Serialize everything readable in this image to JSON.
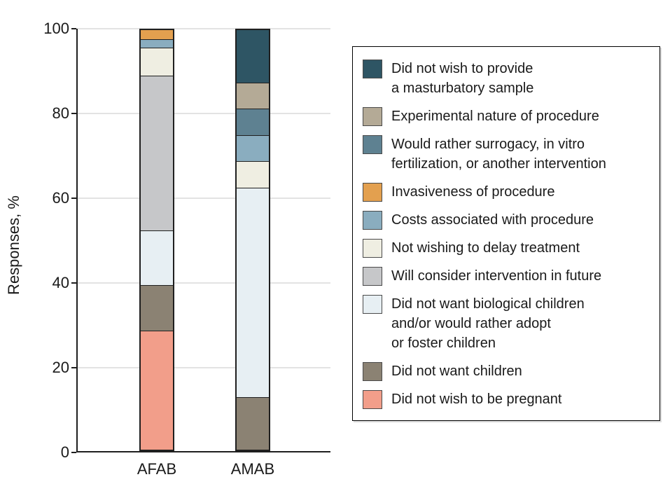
{
  "chart_data": {
    "type": "bar",
    "stacked": true,
    "units": "percent",
    "title": "",
    "xlabel": "",
    "ylabel": "Responses, %",
    "ylim": [
      0,
      100
    ],
    "yticks": [
      0,
      20,
      40,
      60,
      80,
      100
    ],
    "grid": "horizontal",
    "legend_position": "right",
    "categories": [
      "AFAB",
      "AMAB"
    ],
    "series": [
      {
        "name": "Did not wish to provide a masturbatory sample",
        "legend_lines": [
          "Did not wish to provide",
          "a masturbatory sample"
        ],
        "color": "#2e5564",
        "values": [
          0,
          12.5
        ]
      },
      {
        "name": "Experimental nature of procedure",
        "legend_lines": [
          "Experimental nature of procedure"
        ],
        "color": "#b4aa96",
        "values": [
          0,
          6.25
        ]
      },
      {
        "name": "Would rather surrogacy, in vitro fertilization, or another intervention",
        "legend_lines": [
          "Would rather surrogacy, in vitro",
          "fertilization, or another intervention"
        ],
        "color": "#5e8191",
        "values": [
          0,
          6.25
        ]
      },
      {
        "name": "Invasiveness of procedure",
        "legend_lines": [
          "Invasiveness of procedure"
        ],
        "color": "#e3a04f",
        "values": [
          2.1,
          0
        ]
      },
      {
        "name": "Costs associated with procedure",
        "legend_lines": [
          "Costs associated with procedure"
        ],
        "color": "#8aadbf",
        "values": [
          2.1,
          6.25
        ]
      },
      {
        "name": "Not wishing to delay treatment",
        "legend_lines": [
          "Not wishing to delay treatment"
        ],
        "color": "#efeee2",
        "values": [
          6.6,
          6.25
        ]
      },
      {
        "name": "Will consider intervention in future",
        "legend_lines": [
          "Will consider intervention in future"
        ],
        "color": "#c6c7c9",
        "values": [
          37.0,
          0
        ]
      },
      {
        "name": "Did not want biological children and/or would rather adopt or foster children",
        "legend_lines": [
          "Did not want biological children",
          "and/or would rather adopt",
          "or foster children"
        ],
        "color": "#e7eff3",
        "values": [
          13.0,
          50.0
        ]
      },
      {
        "name": "Did not want children",
        "legend_lines": [
          "Did not want children"
        ],
        "color": "#8b8273",
        "values": [
          10.9,
          12.5
        ]
      },
      {
        "name": "Did not wish to be pregnant",
        "legend_lines": [
          "Did not wish to be pregnant"
        ],
        "color": "#f29e8a",
        "values": [
          28.3,
          0
        ]
      }
    ]
  },
  "style_colors": {
    "axis": "#1f1f1f",
    "gridline": "#e3e3e3",
    "background": "#ffffff",
    "text": "#1a1a1a"
  },
  "layout_hints": {
    "bar_center_fractions": [
      0.3113,
      0.6887
    ]
  }
}
